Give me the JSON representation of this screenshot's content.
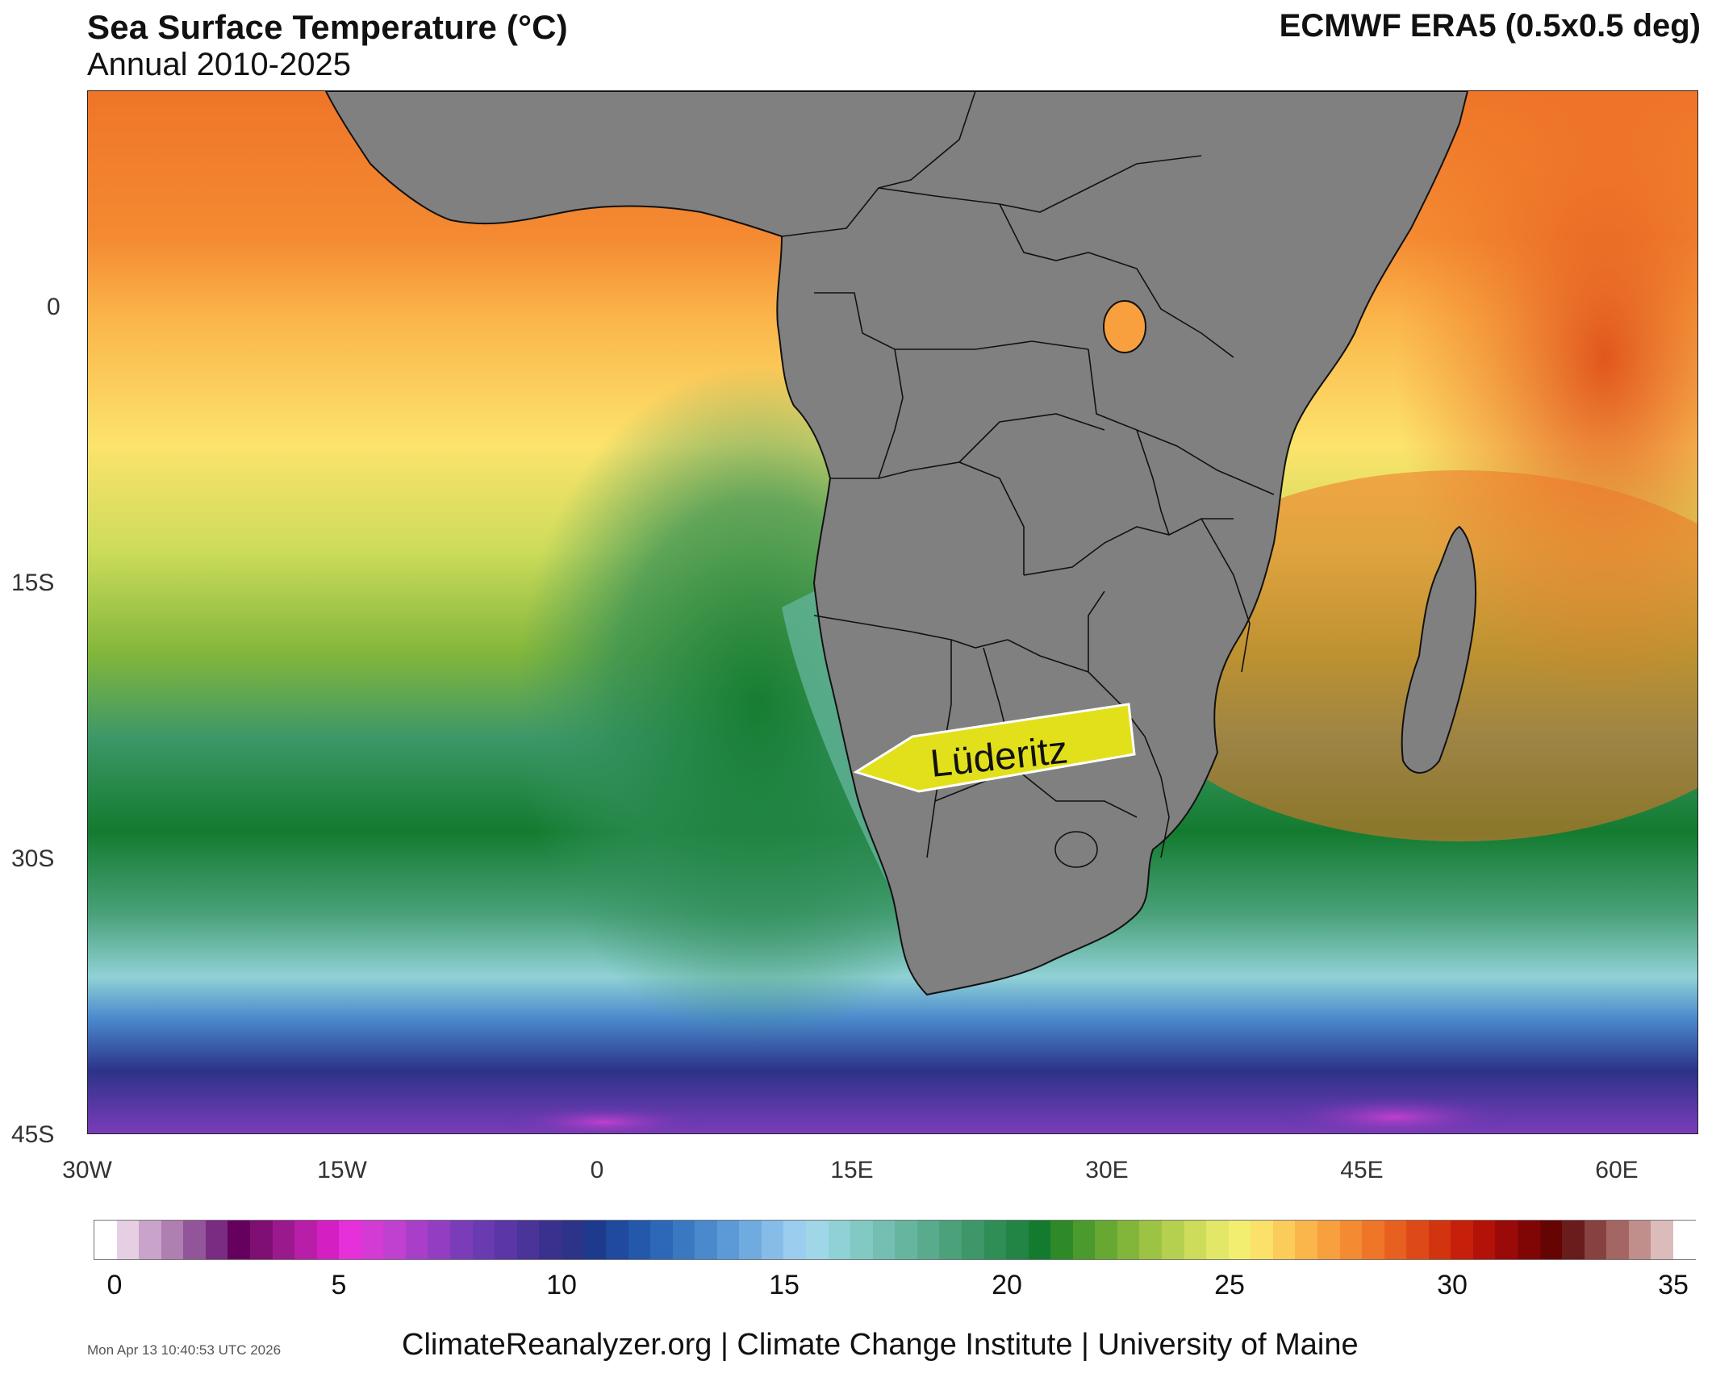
{
  "header": {
    "title": "Sea Surface Temperature (°C)",
    "subtitle": "Annual 2010-2025",
    "source": "ECMWF ERA5 (0.5x0.5 deg)"
  },
  "axes": {
    "latitude_labels": [
      "0",
      "15S",
      "30S",
      "45S"
    ],
    "longitude_labels": [
      "30W",
      "15W",
      "0",
      "15E",
      "30E",
      "45E",
      "60E"
    ]
  },
  "annotation": {
    "label": "Lüderitz"
  },
  "colorbar": {
    "ticks": [
      "0",
      "5",
      "10",
      "15",
      "20",
      "25",
      "30",
      "35"
    ],
    "colors": [
      "#ffffff",
      "#e6cfe3",
      "#c9a3c9",
      "#b07fb2",
      "#93559a",
      "#7a2c82",
      "#66005e",
      "#7f0f73",
      "#9a1a8e",
      "#b81ea7",
      "#d420c3",
      "#e630d9",
      "#d43ad4",
      "#c040cf",
      "#a93fc9",
      "#933ec2",
      "#7b3cba",
      "#6a3ab1",
      "#5a36a6",
      "#4a3399",
      "#3a318e",
      "#2c3388",
      "#1d3a8c",
      "#1f4a9d",
      "#2458ab",
      "#2d68b8",
      "#3a78c2",
      "#4a89cc",
      "#5b9ad6",
      "#6fabdf",
      "#86bde8",
      "#9bcdee",
      "#9fd6e8",
      "#90d1d6",
      "#82c9c4",
      "#74bfb2",
      "#66b59f",
      "#58ab8c",
      "#4aa17a",
      "#3d9768",
      "#2f8d56",
      "#228445",
      "#137b2f",
      "#2e8a29",
      "#4b9a2e",
      "#67a833",
      "#82b63b",
      "#9dc344",
      "#b5d04f",
      "#cddc5b",
      "#e3e767",
      "#f2ef70",
      "#fbe16a",
      "#fccc5a",
      "#fbb64b",
      "#f89f3e",
      "#f48a32",
      "#ef7528",
      "#e8601f",
      "#de4a17",
      "#d33410",
      "#c6200b",
      "#b31209",
      "#9a0a08",
      "#800606",
      "#660404",
      "#6a1b1c",
      "#874140",
      "#a46663",
      "#c08e8b",
      "#dcbcba",
      "#ffffff"
    ]
  },
  "footer": {
    "timestamp": "Mon Apr 13 10:40:53 UTC 2026",
    "credit": "ClimateReanalyzer.org | Climate Change Institute | University of Maine"
  },
  "colors": {
    "land": "#808080",
    "border": "#111111",
    "label_fill": "#e2e01a"
  }
}
